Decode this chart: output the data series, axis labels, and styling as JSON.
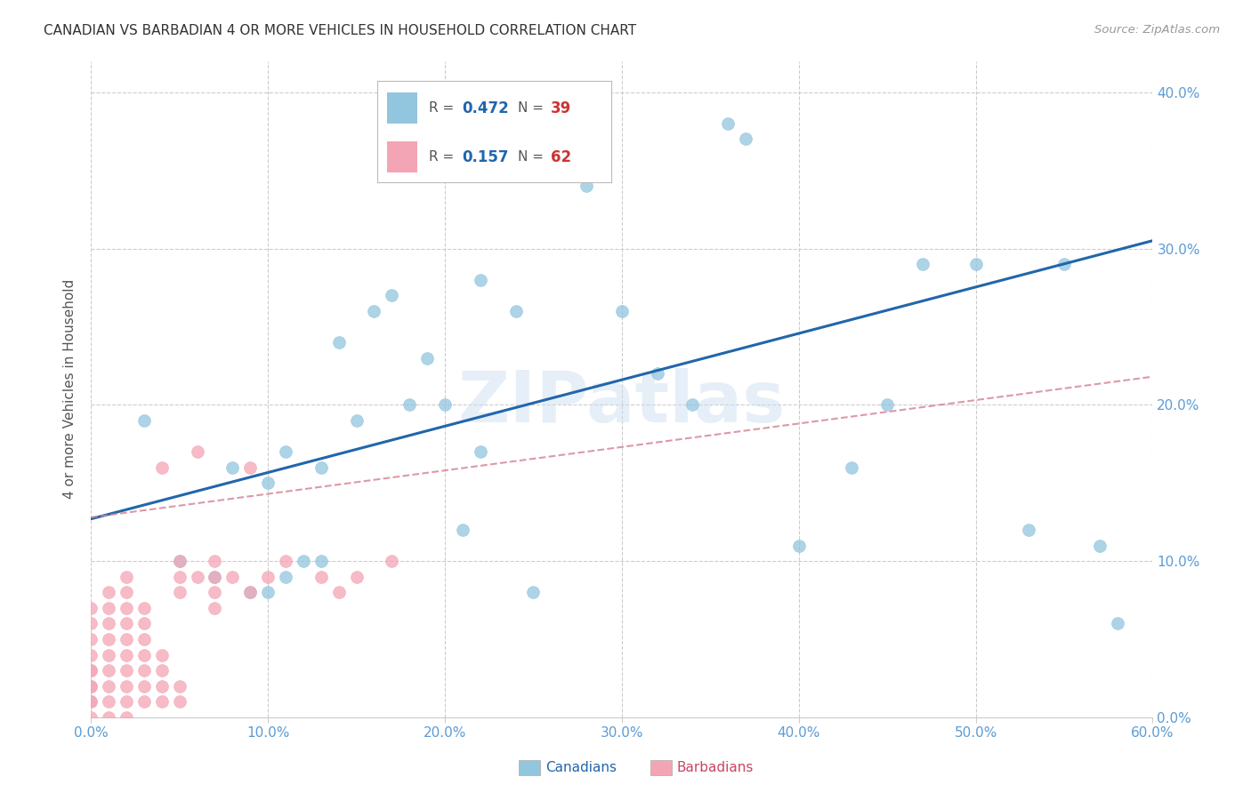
{
  "title": "CANADIAN VS BARBADIAN 4 OR MORE VEHICLES IN HOUSEHOLD CORRELATION CHART",
  "source": "Source: ZipAtlas.com",
  "ylabel": "4 or more Vehicles in Household",
  "xlim": [
    0.0,
    0.6
  ],
  "ylim": [
    0.0,
    0.42
  ],
  "watermark": "ZIPatlas",
  "r_canadian": "0.472",
  "n_canadian": "39",
  "r_barbadian": "0.157",
  "n_barbadian": "62",
  "canadian_color": "#92c5de",
  "barbadian_color": "#f4a5b5",
  "canadian_line_color": "#2166ac",
  "barbadian_line_color": "#d48090",
  "canadians_x": [
    0.03,
    0.05,
    0.07,
    0.08,
    0.09,
    0.1,
    0.1,
    0.11,
    0.11,
    0.12,
    0.13,
    0.13,
    0.14,
    0.15,
    0.16,
    0.17,
    0.18,
    0.19,
    0.2,
    0.21,
    0.22,
    0.22,
    0.24,
    0.25,
    0.28,
    0.3,
    0.32,
    0.34,
    0.36,
    0.37,
    0.4,
    0.43,
    0.45,
    0.47,
    0.5,
    0.53,
    0.55,
    0.57,
    0.58
  ],
  "canadians_y": [
    0.19,
    0.1,
    0.09,
    0.16,
    0.08,
    0.08,
    0.15,
    0.09,
    0.17,
    0.1,
    0.1,
    0.16,
    0.24,
    0.19,
    0.26,
    0.27,
    0.2,
    0.23,
    0.2,
    0.12,
    0.17,
    0.28,
    0.26,
    0.08,
    0.34,
    0.26,
    0.22,
    0.2,
    0.38,
    0.37,
    0.11,
    0.16,
    0.2,
    0.29,
    0.29,
    0.12,
    0.29,
    0.11,
    0.06
  ],
  "barbadians_x": [
    0.0,
    0.0,
    0.0,
    0.0,
    0.0,
    0.0,
    0.0,
    0.0,
    0.0,
    0.0,
    0.0,
    0.01,
    0.01,
    0.01,
    0.01,
    0.01,
    0.01,
    0.01,
    0.01,
    0.01,
    0.02,
    0.02,
    0.02,
    0.02,
    0.02,
    0.02,
    0.02,
    0.02,
    0.02,
    0.02,
    0.03,
    0.03,
    0.03,
    0.03,
    0.03,
    0.03,
    0.03,
    0.04,
    0.04,
    0.04,
    0.04,
    0.04,
    0.05,
    0.05,
    0.05,
    0.05,
    0.05,
    0.06,
    0.06,
    0.07,
    0.07,
    0.07,
    0.07,
    0.08,
    0.09,
    0.09,
    0.1,
    0.11,
    0.13,
    0.14,
    0.15,
    0.17
  ],
  "barbadians_y": [
    0.0,
    0.01,
    0.02,
    0.03,
    0.04,
    0.05,
    0.06,
    0.07,
    0.03,
    0.02,
    0.01,
    0.0,
    0.01,
    0.02,
    0.03,
    0.04,
    0.05,
    0.06,
    0.07,
    0.08,
    0.0,
    0.01,
    0.02,
    0.03,
    0.04,
    0.05,
    0.06,
    0.07,
    0.08,
    0.09,
    0.01,
    0.02,
    0.03,
    0.04,
    0.05,
    0.06,
    0.07,
    0.01,
    0.02,
    0.03,
    0.04,
    0.16,
    0.01,
    0.02,
    0.08,
    0.09,
    0.1,
    0.09,
    0.17,
    0.07,
    0.08,
    0.09,
    0.1,
    0.09,
    0.08,
    0.16,
    0.09,
    0.1,
    0.09,
    0.08,
    0.09,
    0.1
  ],
  "can_line_x0": 0.0,
  "can_line_y0": 0.127,
  "can_line_x1": 0.6,
  "can_line_y1": 0.305,
  "bar_line_x0": 0.0,
  "bar_line_y0": 0.128,
  "bar_line_x1": 0.6,
  "bar_line_y1": 0.218,
  "grid_color": "#cccccc",
  "background_color": "#ffffff",
  "title_fontsize": 11,
  "axis_label_color": "#5b9bd5",
  "tick_label_color": "#5b9bd5"
}
